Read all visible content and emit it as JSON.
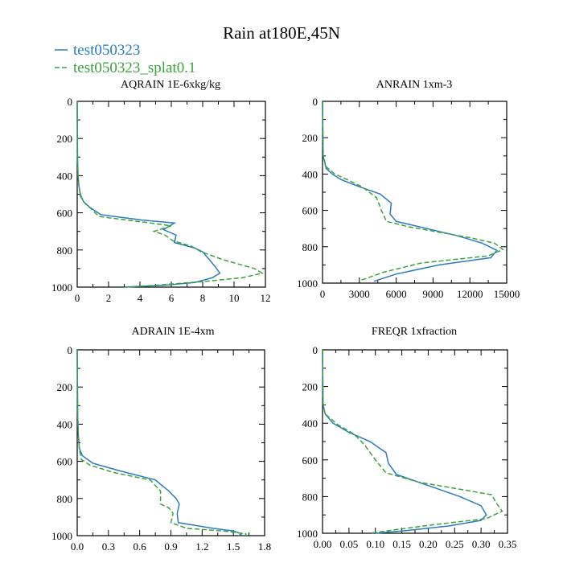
{
  "title": "Rain at180E,45N",
  "colors": {
    "series_1": "#2a7bbf",
    "series_2": "#3aa33a"
  },
  "legend": [
    {
      "label": "test050323",
      "style": "solid"
    },
    {
      "label": "test050323_splat0.1",
      "style": "dashed"
    }
  ],
  "chart_data": [
    {
      "type": "line",
      "title": "AQRAIN  1E-6xkg/kg",
      "xlabel": "",
      "ylabel": "",
      "xlim": [
        0,
        12
      ],
      "ylim": [
        1000,
        0
      ],
      "y_reversed": true,
      "x_ticks": [
        0,
        2,
        4,
        6,
        8,
        10,
        12
      ],
      "x_tick_labels": [
        "0",
        "2",
        "4",
        "6",
        "8",
        "10",
        "12"
      ],
      "y_ticks": [
        0,
        200,
        400,
        600,
        800,
        1000
      ],
      "series": [
        {
          "name": "test050323",
          "x": [
            0,
            0.02,
            0.05,
            0.1,
            0.2,
            0.4,
            0.8,
            1.5,
            4.2,
            6.2,
            5.5,
            6.3,
            6.2,
            7.5,
            8.0,
            8.4,
            8.8,
            9.1,
            8.6,
            7.5,
            5.5,
            3.0
          ],
          "y": [
            0,
            300,
            400,
            450,
            500,
            540,
            570,
            610,
            640,
            655,
            690,
            720,
            760,
            790,
            810,
            850,
            890,
            925,
            950,
            975,
            990,
            1000
          ]
        },
        {
          "name": "test050323_splat0.1",
          "x": [
            0,
            0.02,
            0.05,
            0.1,
            0.2,
            0.5,
            0.9,
            1.4,
            4.2,
            6.0,
            4.9,
            5.6,
            6.1,
            7.3,
            7.9,
            9.4,
            11.3,
            11.8,
            10.5,
            8.0,
            5.0,
            3.0
          ],
          "y": [
            0,
            300,
            400,
            450,
            510,
            550,
            580,
            620,
            650,
            670,
            700,
            720,
            750,
            780,
            810,
            855,
            900,
            925,
            950,
            970,
            990,
            1000
          ]
        }
      ]
    },
    {
      "type": "line",
      "title": "ANRAIN  1xm-3",
      "xlabel": "",
      "ylabel": "",
      "xlim": [
        0,
        15000
      ],
      "ylim": [
        1000,
        0
      ],
      "y_reversed": true,
      "x_ticks": [
        0,
        3000,
        6000,
        9000,
        12000,
        15000
      ],
      "x_tick_labels": [
        "0",
        "3000",
        "6000",
        "9000",
        "12000",
        "15000"
      ],
      "y_ticks": [
        0,
        200,
        400,
        600,
        800,
        1000
      ],
      "series": [
        {
          "name": "test050323",
          "x": [
            0,
            50,
            300,
            800,
            1500,
            3000,
            4700,
            5600,
            5500,
            6000,
            8500,
            11000,
            13000,
            14200,
            13700,
            9500,
            6000,
            4200
          ],
          "y": [
            0,
            300,
            370,
            400,
            430,
            470,
            510,
            560,
            620,
            660,
            700,
            740,
            780,
            820,
            860,
            900,
            950,
            990
          ]
        },
        {
          "name": "test050323_splat0.1",
          "x": [
            0,
            50,
            300,
            1000,
            2000,
            3200,
            4400,
            4800,
            5200,
            7000,
            9500,
            12000,
            14000,
            14700,
            13500,
            8000,
            5000,
            3100
          ],
          "y": [
            0,
            300,
            360,
            400,
            430,
            470,
            530,
            600,
            660,
            690,
            720,
            750,
            780,
            815,
            850,
            890,
            940,
            985
          ]
        }
      ]
    },
    {
      "type": "line",
      "title": "ADRAIN  1E-4xm",
      "xlabel": "",
      "ylabel": "",
      "xlim": [
        0,
        1.8
      ],
      "ylim": [
        1000,
        0
      ],
      "y_reversed": true,
      "x_ticks": [
        0,
        0.3,
        0.6,
        0.9,
        1.2,
        1.5,
        1.8
      ],
      "x_tick_labels": [
        "0.0",
        "0.3",
        "0.6",
        "0.9",
        "1.2",
        "1.5",
        "1.8"
      ],
      "y_ticks": [
        0,
        200,
        400,
        600,
        800,
        1000
      ],
      "series": [
        {
          "name": "test050323",
          "x": [
            0,
            0.005,
            0.01,
            0.02,
            0.05,
            0.15,
            0.4,
            0.75,
            0.88,
            0.95,
            0.98,
            0.96,
            0.97,
            1.3,
            1.5,
            1.58,
            1.55
          ],
          "y": [
            0,
            350,
            450,
            530,
            570,
            610,
            650,
            700,
            760,
            800,
            830,
            880,
            930,
            960,
            975,
            990,
            1000
          ]
        },
        {
          "name": "test050323_splat0.1",
          "x": [
            0,
            0.005,
            0.01,
            0.02,
            0.04,
            0.12,
            0.35,
            0.7,
            0.8,
            0.8,
            0.88,
            0.92,
            0.9,
            1.05,
            1.4,
            1.62,
            1.62
          ],
          "y": [
            0,
            350,
            450,
            530,
            590,
            620,
            660,
            700,
            760,
            830,
            850,
            880,
            930,
            960,
            975,
            990,
            1000
          ]
        }
      ]
    },
    {
      "type": "line",
      "title": "FREQR  1xfraction",
      "xlabel": "",
      "ylabel": "",
      "xlim": [
        0,
        0.35
      ],
      "ylim": [
        1000,
        0
      ],
      "y_reversed": true,
      "x_ticks": [
        0,
        0.05,
        0.1,
        0.15,
        0.2,
        0.25,
        0.3,
        0.35
      ],
      "x_tick_labels": [
        "0.00",
        "0.05",
        "0.10",
        "0.15",
        "0.20",
        "0.25",
        "0.30",
        "0.35"
      ],
      "y_ticks": [
        0,
        200,
        400,
        600,
        800,
        1000
      ],
      "series": [
        {
          "name": "test050323",
          "x": [
            0,
            0.001,
            0.005,
            0.02,
            0.05,
            0.09,
            0.12,
            0.125,
            0.14,
            0.2,
            0.26,
            0.3,
            0.31,
            0.3,
            0.24,
            0.16,
            0.1
          ],
          "y": [
            0,
            300,
            350,
            400,
            450,
            500,
            560,
            620,
            680,
            740,
            800,
            850,
            900,
            930,
            960,
            985,
            1000
          ]
        },
        {
          "name": "test050323_splat0.1",
          "x": [
            0,
            0.001,
            0.005,
            0.03,
            0.06,
            0.08,
            0.1,
            0.12,
            0.18,
            0.26,
            0.32,
            0.33,
            0.34,
            0.31,
            0.22,
            0.14,
            0.09
          ],
          "y": [
            0,
            300,
            350,
            410,
            460,
            520,
            600,
            670,
            720,
            760,
            790,
            840,
            880,
            920,
            950,
            980,
            1000
          ]
        }
      ]
    }
  ]
}
